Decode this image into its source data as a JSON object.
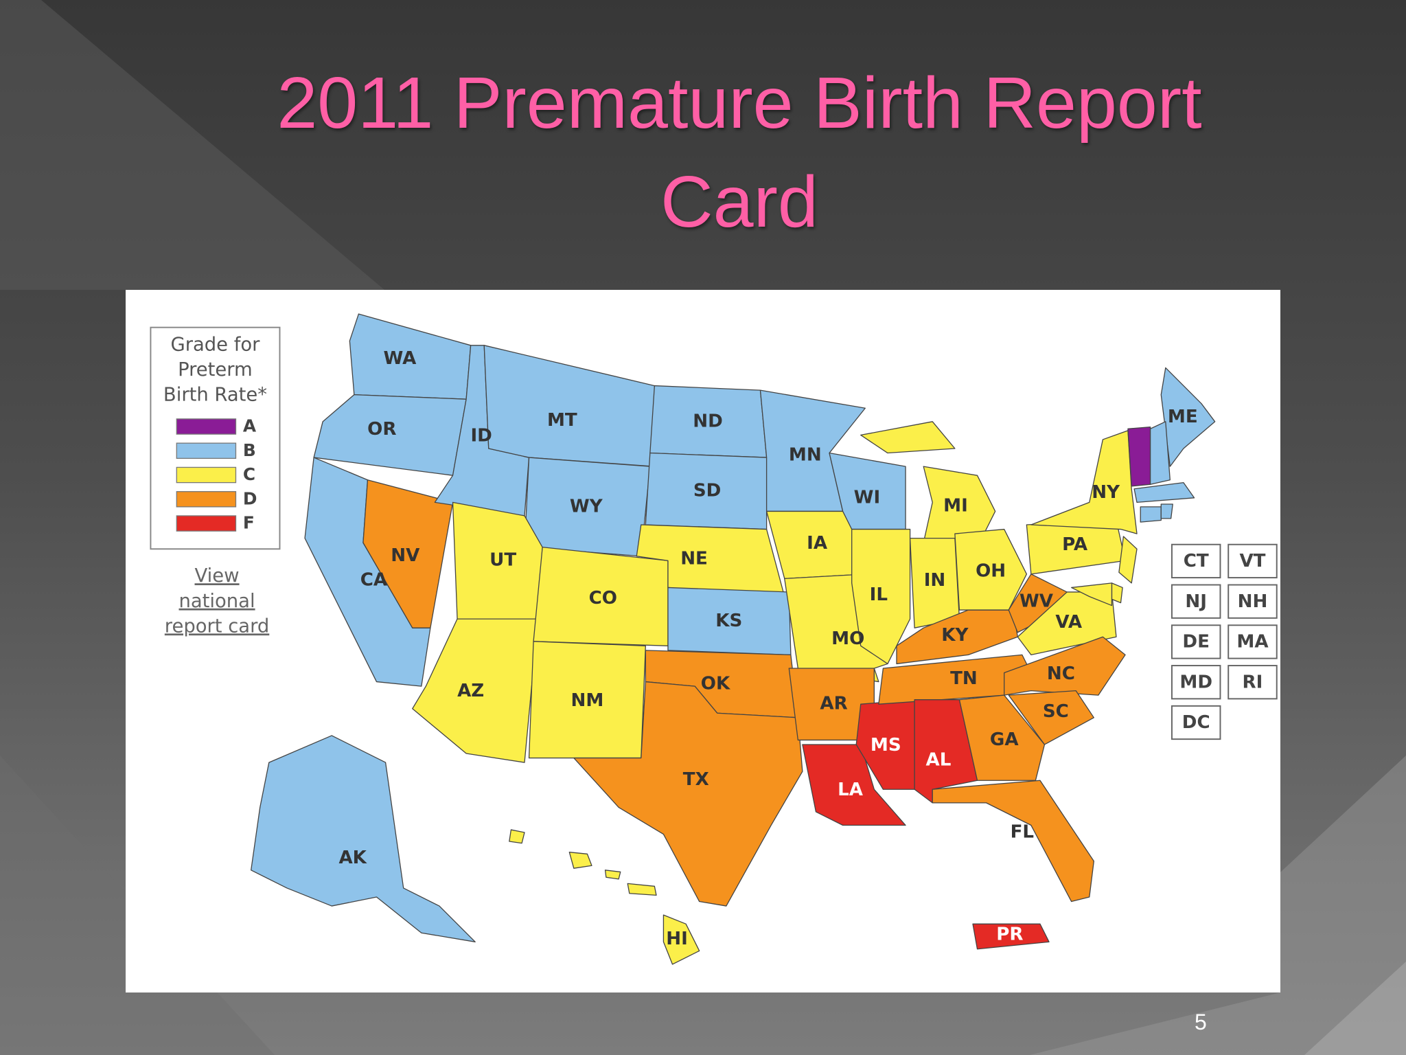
{
  "title": "2011 Premature Birth Report Card",
  "slide_number": "5",
  "legend": {
    "title_lines": [
      "Grade for",
      "Preterm",
      "Birth Rate*"
    ],
    "grades": [
      {
        "letter": "A",
        "color": "#8a1c96"
      },
      {
        "letter": "B",
        "color": "#8fc3ea"
      },
      {
        "letter": "C",
        "color": "#fbef4a"
      },
      {
        "letter": "D",
        "color": "#f5921e"
      },
      {
        "letter": "F",
        "color": "#e42a25"
      }
    ]
  },
  "link_lines": [
    "View",
    "national",
    "report card"
  ],
  "states": [
    {
      "label": "WA",
      "grade": "B"
    },
    {
      "label": "OR",
      "grade": "B"
    },
    {
      "label": "CA",
      "grade": "B"
    },
    {
      "label": "NV",
      "grade": "D"
    },
    {
      "label": "ID",
      "grade": "B"
    },
    {
      "label": "MT",
      "grade": "B"
    },
    {
      "label": "WY",
      "grade": "B"
    },
    {
      "label": "UT",
      "grade": "C"
    },
    {
      "label": "AZ",
      "grade": "C"
    },
    {
      "label": "CO",
      "grade": "C"
    },
    {
      "label": "NM",
      "grade": "C"
    },
    {
      "label": "ND",
      "grade": "B"
    },
    {
      "label": "SD",
      "grade": "B"
    },
    {
      "label": "NE",
      "grade": "C"
    },
    {
      "label": "KS",
      "grade": "B"
    },
    {
      "label": "OK",
      "grade": "D"
    },
    {
      "label": "TX",
      "grade": "D"
    },
    {
      "label": "MN",
      "grade": "B"
    },
    {
      "label": "IA",
      "grade": "C"
    },
    {
      "label": "MO",
      "grade": "C"
    },
    {
      "label": "AR",
      "grade": "D"
    },
    {
      "label": "LA",
      "grade": "F"
    },
    {
      "label": "WI",
      "grade": "B"
    },
    {
      "label": "IL",
      "grade": "C"
    },
    {
      "label": "MS",
      "grade": "F"
    },
    {
      "label": "MI",
      "grade": "C"
    },
    {
      "label": "IN",
      "grade": "C"
    },
    {
      "label": "KY",
      "grade": "D"
    },
    {
      "label": "TN",
      "grade": "D"
    },
    {
      "label": "AL",
      "grade": "F"
    },
    {
      "label": "OH",
      "grade": "C"
    },
    {
      "label": "WV",
      "grade": "D"
    },
    {
      "label": "VA",
      "grade": "C"
    },
    {
      "label": "NC",
      "grade": "D"
    },
    {
      "label": "SC",
      "grade": "D"
    },
    {
      "label": "GA",
      "grade": "D"
    },
    {
      "label": "FL",
      "grade": "D"
    },
    {
      "label": "PA",
      "grade": "C"
    },
    {
      "label": "NY",
      "grade": "C"
    },
    {
      "label": "ME",
      "grade": "B"
    },
    {
      "label": "AK",
      "grade": "B"
    },
    {
      "label": "HI",
      "grade": "C"
    },
    {
      "label": "PR",
      "grade": "F"
    }
  ],
  "small_states": [
    {
      "label": "CT",
      "grade": "B"
    },
    {
      "label": "VT",
      "grade": "A"
    },
    {
      "label": "NJ",
      "grade": "C"
    },
    {
      "label": "NH",
      "grade": "B"
    },
    {
      "label": "DE",
      "grade": "C"
    },
    {
      "label": "MA",
      "grade": "B"
    },
    {
      "label": "MD",
      "grade": "C"
    },
    {
      "label": "RI",
      "grade": "B"
    },
    {
      "label": "DC"
    }
  ]
}
